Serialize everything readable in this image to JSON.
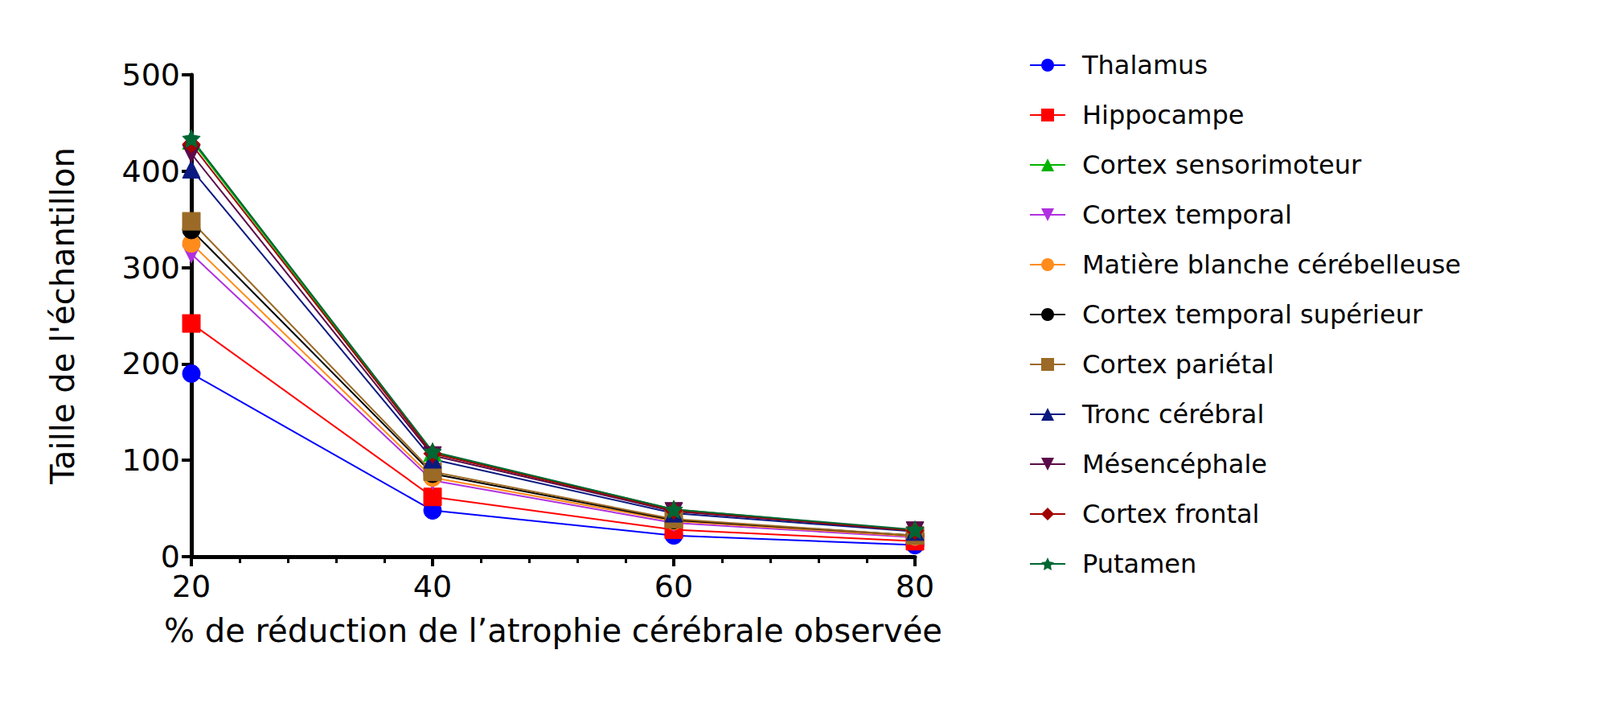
{
  "chart_data": {
    "type": "line",
    "xlabel": "% de réduction de l’atrophie cérébrale observée",
    "ylabel": "Taille de l'échantillon",
    "x": [
      20,
      40,
      60,
      80
    ],
    "xlim": [
      20,
      80
    ],
    "xticks": [
      20,
      40,
      60,
      80
    ],
    "ylim": [
      0,
      500
    ],
    "yticks": [
      0,
      100,
      200,
      300,
      400,
      500
    ],
    "grid": false,
    "legend": "right",
    "series": [
      {
        "name": "Thalamus",
        "color": "#0000ff",
        "marker": "circle",
        "values": [
          190,
          48,
          22,
          12
        ]
      },
      {
        "name": "Hippocampe",
        "color": "#ff0000",
        "marker": "square",
        "values": [
          242,
          62,
          28,
          16
        ]
      },
      {
        "name": "Cortex sensorimoteur",
        "color": "#00b300",
        "marker": "triangle",
        "values": [
          432,
          108,
          49,
          27
        ]
      },
      {
        "name": "Cortex temporal",
        "color": "#b030e0",
        "marker": "triangle-down",
        "values": [
          314,
          79,
          35,
          20
        ]
      },
      {
        "name": "Matière blanche cérébelleuse",
        "color": "#ff8c1a",
        "marker": "circle",
        "values": [
          325,
          82,
          37,
          21
        ]
      },
      {
        "name": "Cortex temporal supérieur",
        "color": "#000000",
        "marker": "circle",
        "values": [
          339,
          86,
          38,
          22
        ]
      },
      {
        "name": "Cortex pariétal",
        "color": "#9a6a26",
        "marker": "square",
        "values": [
          348,
          88,
          39,
          22
        ]
      },
      {
        "name": "Tronc cérébral",
        "color": "#0a1a80",
        "marker": "triangle",
        "values": [
          402,
          101,
          45,
          26
        ]
      },
      {
        "name": "Mésencéphale",
        "color": "#5a0a4a",
        "marker": "triangle-down",
        "values": [
          418,
          105,
          47,
          27
        ]
      },
      {
        "name": "Cortex frontal",
        "color": "#a00000",
        "marker": "diamond",
        "values": [
          428,
          107,
          48,
          27
        ]
      },
      {
        "name": "Putamen",
        "color": "#006633",
        "marker": "star",
        "values": [
          434,
          109,
          49,
          28
        ]
      }
    ]
  }
}
